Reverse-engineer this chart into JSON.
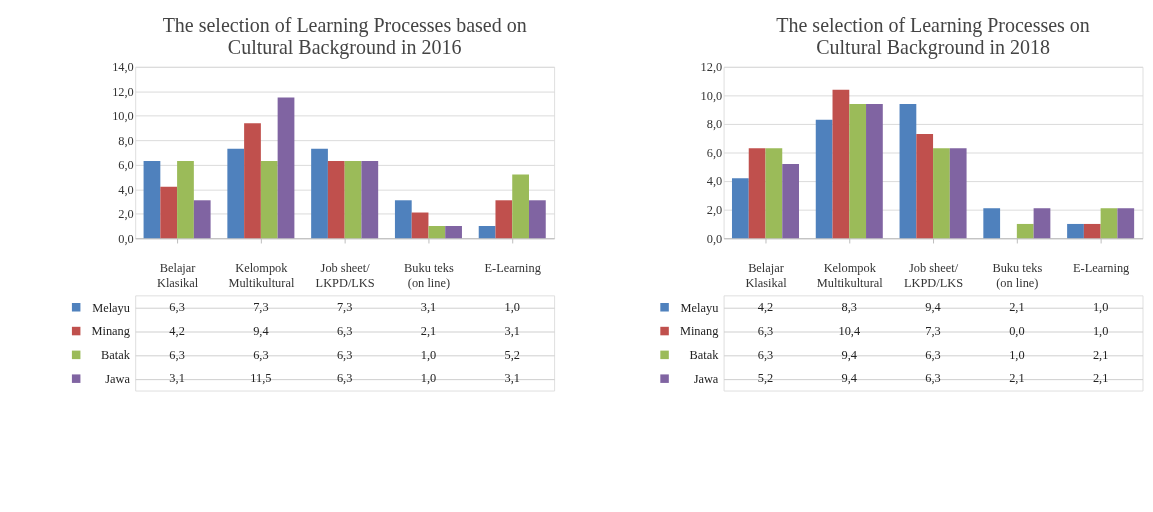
{
  "chart_data": [
    {
      "type": "bar",
      "title": "The selection of Learning Processes based on Cultural Background in 2016",
      "categories": [
        "Belajar Klasikal",
        "Kelompok Multikultural",
        "Job sheet/ LKPD/LKS",
        "Buku teks (on line)",
        "E-Learning"
      ],
      "series": [
        {
          "name": "Melayu",
          "color": "#4f81bd",
          "values": [
            6.3,
            7.3,
            7.3,
            3.1,
            1.0
          ],
          "value_labels": [
            "6,3",
            "7,3",
            "7,3",
            "3,1",
            "1,0"
          ]
        },
        {
          "name": "Minang",
          "color": "#c0504d",
          "values": [
            4.2,
            9.4,
            6.3,
            2.1,
            3.1
          ],
          "value_labels": [
            "4,2",
            "9,4",
            "6,3",
            "2,1",
            "3,1"
          ]
        },
        {
          "name": "Batak",
          "color": "#9bbb59",
          "values": [
            6.3,
            6.3,
            6.3,
            1.0,
            5.2
          ],
          "value_labels": [
            "6,3",
            "6,3",
            "6,3",
            "1,0",
            "5,2"
          ]
        },
        {
          "name": "Jawa",
          "color": "#8064a2",
          "values": [
            3.1,
            11.5,
            6.3,
            1.0,
            3.1
          ],
          "value_labels": [
            "3,1",
            "11,5",
            "6,3",
            "1,0",
            "3,1"
          ]
        }
      ],
      "ylim": [
        0,
        14
      ],
      "yticks": [
        {
          "value": 0,
          "label": "0,0"
        },
        {
          "value": 2,
          "label": "2,0"
        },
        {
          "value": 4,
          "label": "4,0"
        },
        {
          "value": 6,
          "label": "6,0"
        },
        {
          "value": 8,
          "label": "8,0"
        },
        {
          "value": 10,
          "label": "10,0"
        },
        {
          "value": 12,
          "label": "12,0"
        },
        {
          "value": 14,
          "label": "14,0"
        }
      ],
      "grid": "y",
      "legend": "bottom"
    },
    {
      "type": "bar",
      "title": "The selection of Learning Processes on Cultural Background in 2018",
      "categories": [
        "Belajar Klasikal",
        "Kelompok Multikultural",
        "Job sheet/ LKPD/LKS",
        "Buku teks (on line)",
        "E-Learning"
      ],
      "series": [
        {
          "name": "Melayu",
          "color": "#4f81bd",
          "values": [
            4.2,
            8.3,
            9.4,
            2.1,
            1.0
          ],
          "value_labels": [
            "4,2",
            "8,3",
            "9,4",
            "2,1",
            "1,0"
          ]
        },
        {
          "name": "Minang",
          "color": "#c0504d",
          "values": [
            6.3,
            10.4,
            7.3,
            0.0,
            1.0
          ],
          "value_labels": [
            "6,3",
            "10,4",
            "7,3",
            "0,0",
            "1,0"
          ]
        },
        {
          "name": "Batak",
          "color": "#9bbb59",
          "values": [
            6.3,
            9.4,
            6.3,
            1.0,
            2.1
          ],
          "value_labels": [
            "6,3",
            "9,4",
            "6,3",
            "1,0",
            "2,1"
          ]
        },
        {
          "name": "Jawa",
          "color": "#8064a2",
          "values": [
            5.2,
            9.4,
            6.3,
            2.1,
            2.1
          ],
          "value_labels": [
            "5,2",
            "9,4",
            "6,3",
            "2,1",
            "2,1"
          ]
        }
      ],
      "ylim": [
        0,
        12
      ],
      "yticks": [
        {
          "value": 0,
          "label": "0,0"
        },
        {
          "value": 2,
          "label": "2,0"
        },
        {
          "value": 4,
          "label": "4,0"
        },
        {
          "value": 6,
          "label": "6,0"
        },
        {
          "value": 8,
          "label": "8,0"
        },
        {
          "value": 10,
          "label": "10,0"
        },
        {
          "value": 12,
          "label": "12,0"
        }
      ],
      "grid": "y",
      "legend": "bottom"
    }
  ]
}
